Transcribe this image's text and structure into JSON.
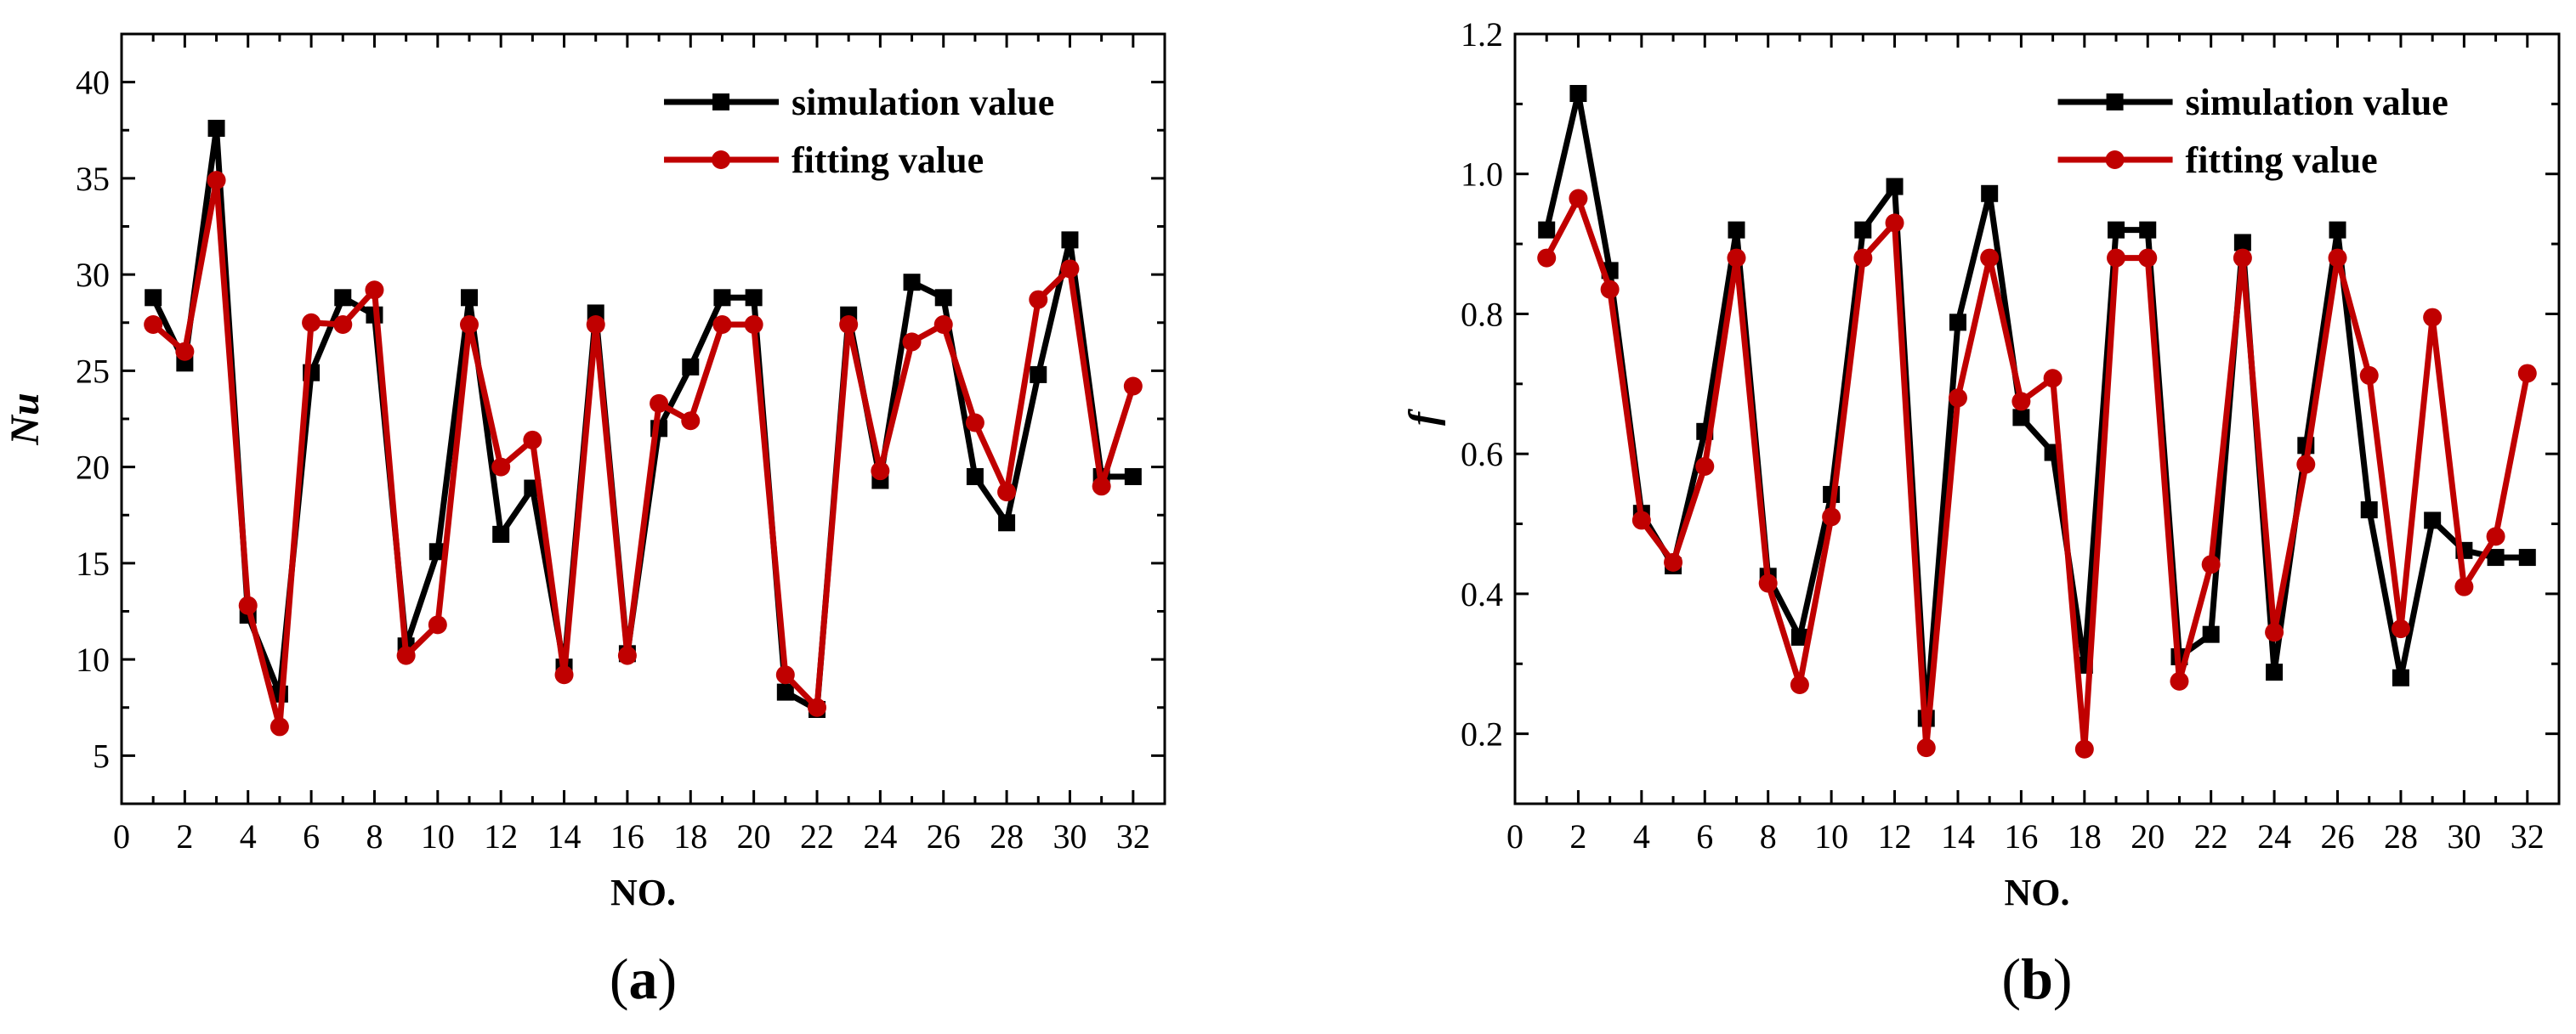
{
  "chart_data": [
    {
      "type": "line",
      "panel_label": "a",
      "xlabel": "NO.",
      "ylabel": "Nu",
      "xlim": [
        0,
        33
      ],
      "ylim": [
        2.5,
        42.5
      ],
      "xticks": [
        0,
        2,
        4,
        6,
        8,
        10,
        12,
        14,
        16,
        18,
        20,
        22,
        24,
        26,
        28,
        30,
        32
      ],
      "yticks": [
        5,
        10,
        15,
        20,
        25,
        30,
        35,
        40
      ],
      "x": [
        1,
        2,
        3,
        4,
        5,
        6,
        7,
        8,
        9,
        10,
        11,
        12,
        13,
        14,
        15,
        16,
        17,
        18,
        19,
        20,
        21,
        22,
        23,
        24,
        25,
        26,
        27,
        28,
        29,
        30,
        31,
        32
      ],
      "legend_position": "top-right",
      "series": [
        {
          "name": "simulation value",
          "color": "#000000",
          "marker": "square",
          "values": [
            28.8,
            25.4,
            37.6,
            12.3,
            8.2,
            24.9,
            28.8,
            27.9,
            10.7,
            15.6,
            28.8,
            16.5,
            18.9,
            9.6,
            28.0,
            10.3,
            22.0,
            25.2,
            28.8,
            28.8,
            8.3,
            7.4,
            27.9,
            19.3,
            29.6,
            28.8,
            19.5,
            17.1,
            24.8,
            31.8,
            19.5,
            19.5
          ]
        },
        {
          "name": "fitting value",
          "color": "#c00000",
          "marker": "circle",
          "values": [
            27.4,
            26.0,
            34.9,
            12.8,
            6.5,
            27.5,
            27.4,
            29.2,
            10.2,
            11.8,
            27.4,
            20.0,
            21.4,
            9.2,
            27.4,
            10.2,
            23.3,
            22.4,
            27.4,
            27.4,
            9.2,
            7.5,
            27.4,
            19.8,
            26.5,
            27.4,
            22.3,
            18.7,
            28.7,
            30.3,
            19.0,
            24.2
          ]
        }
      ]
    },
    {
      "type": "line",
      "panel_label": "b",
      "xlabel": "NO.",
      "ylabel": "f",
      "xlim": [
        0,
        33
      ],
      "ylim": [
        0.1,
        1.2
      ],
      "xticks": [
        0,
        2,
        4,
        6,
        8,
        10,
        12,
        14,
        16,
        18,
        20,
        22,
        24,
        26,
        28,
        30,
        32
      ],
      "yticks": [
        0.2,
        0.4,
        0.6,
        0.8,
        1.0,
        1.2
      ],
      "x": [
        1,
        2,
        3,
        4,
        5,
        6,
        7,
        8,
        9,
        10,
        11,
        12,
        13,
        14,
        15,
        16,
        17,
        18,
        19,
        20,
        21,
        22,
        23,
        24,
        25,
        26,
        27,
        28,
        29,
        30,
        31,
        32
      ],
      "legend_position": "top-right",
      "series": [
        {
          "name": "simulation value",
          "color": "#000000",
          "marker": "square",
          "values": [
            0.92,
            1.115,
            0.862,
            0.515,
            0.44,
            0.632,
            0.92,
            0.425,
            0.338,
            0.542,
            0.92,
            0.982,
            0.222,
            0.788,
            0.972,
            0.652,
            0.602,
            0.298,
            0.92,
            0.92,
            0.31,
            0.342,
            0.902,
            0.288,
            0.612,
            0.92,
            0.52,
            0.28,
            0.505,
            0.462,
            0.452,
            0.452
          ]
        },
        {
          "name": "fitting value",
          "color": "#c00000",
          "marker": "circle",
          "values": [
            0.88,
            0.965,
            0.835,
            0.505,
            0.445,
            0.582,
            0.88,
            0.415,
            0.27,
            0.51,
            0.88,
            0.93,
            0.18,
            0.68,
            0.88,
            0.675,
            0.708,
            0.178,
            0.88,
            0.88,
            0.275,
            0.442,
            0.88,
            0.345,
            0.585,
            0.88,
            0.712,
            0.35,
            0.795,
            0.41,
            0.482,
            0.715
          ]
        }
      ]
    }
  ]
}
